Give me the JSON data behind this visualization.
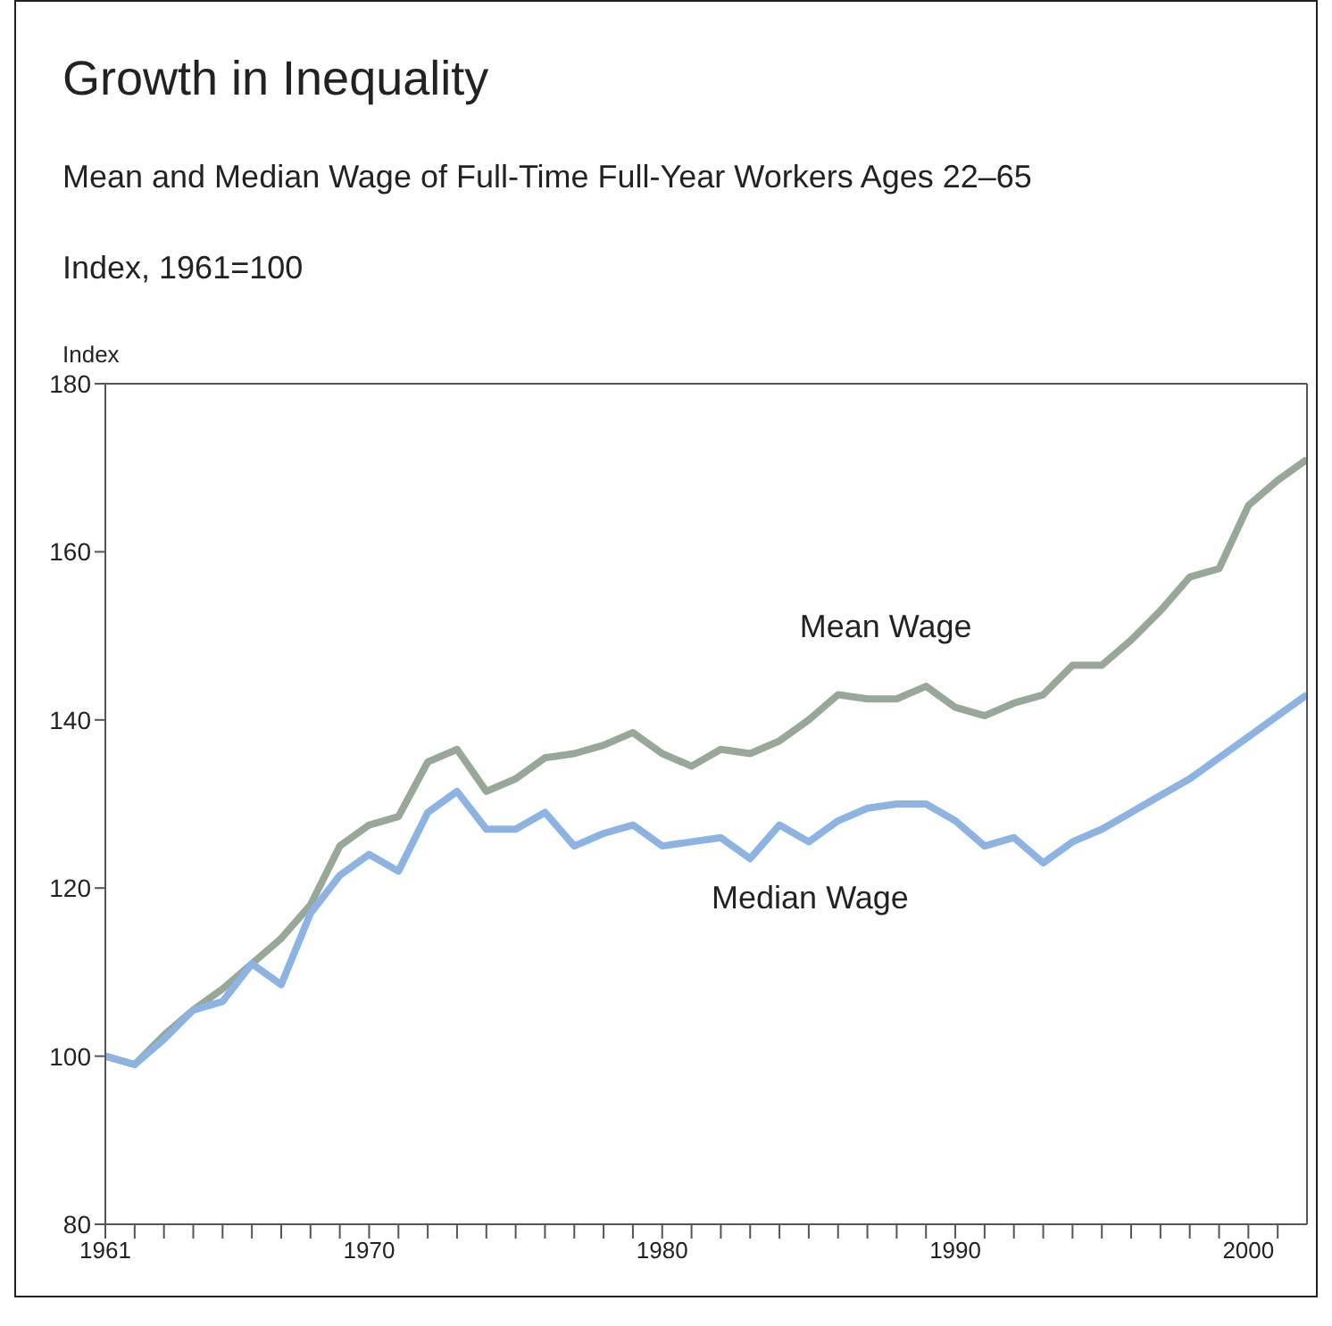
{
  "chart_data": {
    "type": "line",
    "title": "Growth in Inequality",
    "subtitle": "Mean and Median Wage of Full-Time Full-Year Workers Ages 22–65",
    "annotations": [
      "Index, 1961=100"
    ],
    "ylabel": "Index",
    "x": [
      1961,
      1962,
      1963,
      1964,
      1965,
      1966,
      1967,
      1968,
      1969,
      1970,
      1971,
      1972,
      1973,
      1974,
      1975,
      1976,
      1977,
      1978,
      1979,
      1980,
      1981,
      1982,
      1983,
      1984,
      1985,
      1986,
      1987,
      1988,
      1989,
      1990,
      1991,
      1992,
      1993,
      1994,
      1995,
      1996,
      1997,
      1998,
      1999,
      2000,
      2001,
      2002
    ],
    "series": [
      {
        "name": "Mean Wage",
        "color": "#98a898",
        "values": [
          100,
          99,
          102.5,
          105.5,
          108,
          111,
          114,
          118,
          125,
          127.5,
          128.5,
          135,
          136.5,
          131.5,
          133,
          135.5,
          136,
          137,
          138.5,
          136,
          134.5,
          136.5,
          136,
          137.5,
          140,
          143,
          142.5,
          142.5,
          144,
          141.5,
          140.5,
          142,
          143,
          146.5,
          146.5,
          149.5,
          153,
          157,
          158,
          165.5,
          168.5,
          171
        ]
      },
      {
        "name": "Median Wage",
        "color": "#8db3e2",
        "values": [
          100,
          99,
          102,
          105.5,
          106.5,
          111,
          108.5,
          117,
          121.5,
          124,
          122,
          129,
          131.5,
          127,
          127,
          129,
          125,
          126.5,
          127.5,
          125,
          125.5,
          126,
          123.5,
          127.5,
          125.5,
          128,
          129.5,
          130,
          130,
          128,
          125,
          126,
          123,
          125.5,
          127,
          129,
          131,
          133,
          135.5,
          138,
          140.5,
          143
        ]
      }
    ],
    "xlim": [
      1961,
      2002
    ],
    "xticks": [
      1961,
      {
        "value": 1962,
        "label": null
      },
      {
        "value": 1963,
        "label": null
      },
      {
        "value": 1964,
        "label": null
      },
      {
        "value": 1965,
        "label": null
      },
      {
        "value": 1966,
        "label": null
      },
      {
        "value": 1967,
        "label": null
      },
      {
        "value": 1968,
        "label": null
      },
      {
        "value": 1969,
        "label": null
      },
      1970,
      {
        "value": 1971,
        "label": null
      },
      {
        "value": 1972,
        "label": null
      },
      {
        "value": 1973,
        "label": null
      },
      {
        "value": 1974,
        "label": null
      },
      {
        "value": 1975,
        "label": null
      },
      {
        "value": 1976,
        "label": null
      },
      {
        "value": 1977,
        "label": null
      },
      {
        "value": 1978,
        "label": null
      },
      {
        "value": 1979,
        "label": null
      },
      1980,
      {
        "value": 1981,
        "label": null
      },
      {
        "value": 1982,
        "label": null
      },
      {
        "value": 1983,
        "label": null
      },
      {
        "value": 1984,
        "label": null
      },
      {
        "value": 1985,
        "label": null
      },
      {
        "value": 1986,
        "label": null
      },
      {
        "value": 1987,
        "label": null
      },
      {
        "value": 1988,
        "label": null
      },
      {
        "value": 1989,
        "label": null
      },
      1990,
      {
        "value": 1991,
        "label": null
      },
      {
        "value": 1992,
        "label": null
      },
      {
        "value": 1993,
        "label": null
      },
      {
        "value": 1994,
        "label": null
      },
      {
        "value": 1995,
        "label": null
      },
      {
        "value": 1996,
        "label": null
      },
      {
        "value": 1997,
        "label": null
      },
      {
        "value": 1998,
        "label": null
      },
      {
        "value": 1999,
        "label": null
      },
      2000,
      {
        "value": 2001,
        "label": null
      }
    ],
    "ylim": [
      80,
      180
    ],
    "yticks": [
      80,
      100,
      120,
      140,
      160,
      180
    ],
    "grid": false,
    "marker": "none",
    "line_style": "solid"
  }
}
